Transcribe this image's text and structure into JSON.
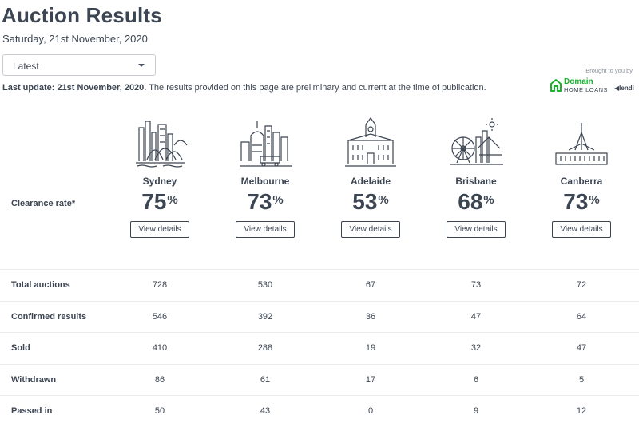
{
  "page": {
    "title": "Auction Results",
    "date": "Saturday, 21st November, 2020",
    "select_value": "Latest",
    "update_bold": "Last update: 21st November, 2020.",
    "update_text": " The results provided on this page are preliminary and current at the time of publication.",
    "sponsor_caption": "Brought to you by",
    "sponsor_name": "Domain",
    "sponsor_sub": "HOME LOANS",
    "sponsor_partner": "lendi"
  },
  "clearance_label": "Clearance rate*",
  "view_details_label": "View details",
  "cities": [
    {
      "name": "Sydney",
      "rate": "75",
      "unit": "%",
      "icon": "sydney-skyline-icon"
    },
    {
      "name": "Melbourne",
      "rate": "73",
      "unit": "%",
      "icon": "melbourne-skyline-icon"
    },
    {
      "name": "Adelaide",
      "rate": "53",
      "unit": "%",
      "icon": "adelaide-skyline-icon"
    },
    {
      "name": "Brisbane",
      "rate": "68",
      "unit": "%",
      "icon": "brisbane-skyline-icon"
    },
    {
      "name": "Canberra",
      "rate": "73",
      "unit": "%",
      "icon": "canberra-skyline-icon"
    }
  ],
  "stats": [
    {
      "label": "Total auctions",
      "values": [
        "728",
        "530",
        "67",
        "73",
        "72"
      ]
    },
    {
      "label": "Confirmed results",
      "values": [
        "546",
        "392",
        "36",
        "47",
        "64"
      ]
    },
    {
      "label": "Sold",
      "values": [
        "410",
        "288",
        "19",
        "32",
        "47"
      ]
    },
    {
      "label": "Withdrawn",
      "values": [
        "86",
        "61",
        "17",
        "6",
        "5"
      ]
    },
    {
      "label": "Passed in",
      "values": [
        "50",
        "43",
        "0",
        "9",
        "12"
      ]
    }
  ],
  "colors": {
    "text": "#3c4552",
    "domain_green": "#1ab22d",
    "divider": "#e9ebee"
  }
}
